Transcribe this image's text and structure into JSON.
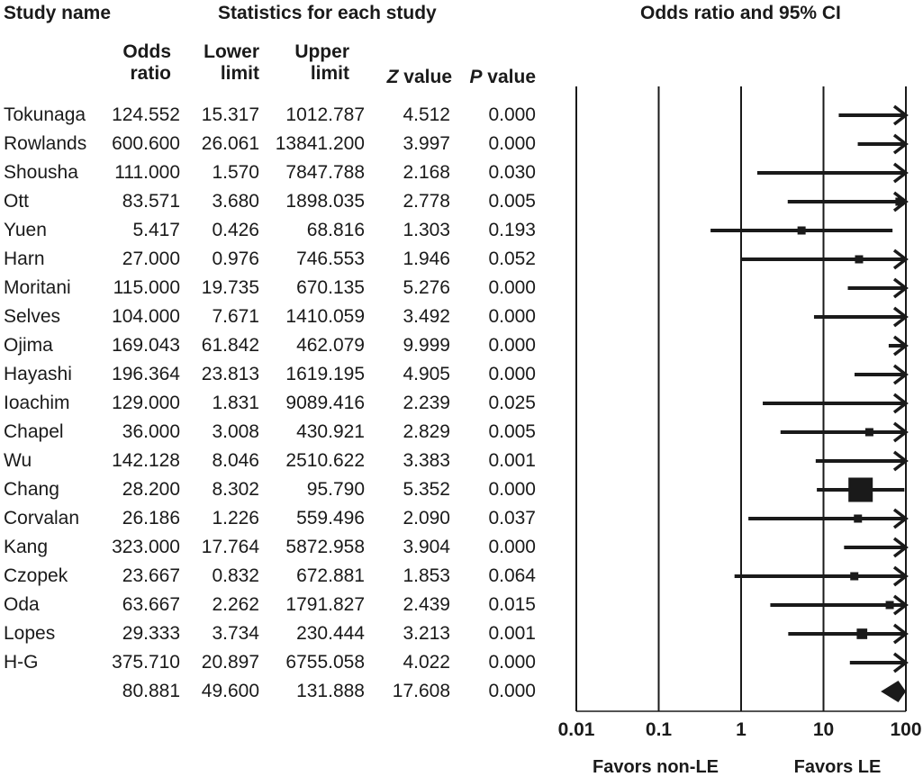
{
  "headers": {
    "study_name": "Study name",
    "stats": "Statistics for each study",
    "plot": "Odds ratio and 95% CI"
  },
  "columns": {
    "or_1": "Odds",
    "or_2": "ratio",
    "lower_1": "Lower",
    "lower_2": "limit",
    "upper_1": "Upper",
    "upper_2": "limit",
    "z_sym": "Z",
    "z_word": "value",
    "p_sym": "P",
    "p_word": "value"
  },
  "rows": [
    {
      "study": "Tokunaga",
      "or": "124.552",
      "lower": "15.317",
      "upper": "1012.787",
      "z": "4.512",
      "p": "0.000"
    },
    {
      "study": "Rowlands",
      "or": "600.600",
      "lower": "26.061",
      "upper": "13841.200",
      "z": "3.997",
      "p": "0.000"
    },
    {
      "study": "Shousha",
      "or": "111.000",
      "lower": "1.570",
      "upper": "7847.788",
      "z": "2.168",
      "p": "0.030"
    },
    {
      "study": "Ott",
      "or": "83.571",
      "lower": "3.680",
      "upper": "1898.035",
      "z": "2.778",
      "p": "0.005"
    },
    {
      "study": "Yuen",
      "or": "5.417",
      "lower": "0.426",
      "upper": "68.816",
      "z": "1.303",
      "p": "0.193"
    },
    {
      "study": "Harn",
      "or": "27.000",
      "lower": "0.976",
      "upper": "746.553",
      "z": "1.946",
      "p": "0.052"
    },
    {
      "study": "Moritani",
      "or": "115.000",
      "lower": "19.735",
      "upper": "670.135",
      "z": "5.276",
      "p": "0.000"
    },
    {
      "study": "Selves",
      "or": "104.000",
      "lower": "7.671",
      "upper": "1410.059",
      "z": "3.492",
      "p": "0.000"
    },
    {
      "study": "Ojima",
      "or": "169.043",
      "lower": "61.842",
      "upper": "462.079",
      "z": "9.999",
      "p": "0.000"
    },
    {
      "study": "Hayashi",
      "or": "196.364",
      "lower": "23.813",
      "upper": "1619.195",
      "z": "4.905",
      "p": "0.000"
    },
    {
      "study": "Ioachim",
      "or": "129.000",
      "lower": "1.831",
      "upper": "9089.416",
      "z": "2.239",
      "p": "0.025"
    },
    {
      "study": "Chapel",
      "or": "36.000",
      "lower": "3.008",
      "upper": "430.921",
      "z": "2.829",
      "p": "0.005"
    },
    {
      "study": "Wu",
      "or": "142.128",
      "lower": "8.046",
      "upper": "2510.622",
      "z": "3.383",
      "p": "0.001"
    },
    {
      "study": "Chang",
      "or": "28.200",
      "lower": "8.302",
      "upper": "95.790",
      "z": "5.352",
      "p": "0.000"
    },
    {
      "study": "Corvalan",
      "or": "26.186",
      "lower": "1.226",
      "upper": "559.496",
      "z": "2.090",
      "p": "0.037"
    },
    {
      "study": "Kang",
      "or": "323.000",
      "lower": "17.764",
      "upper": "5872.958",
      "z": "3.904",
      "p": "0.000"
    },
    {
      "study": "Czopek",
      "or": "23.667",
      "lower": "0.832",
      "upper": "672.881",
      "z": "1.853",
      "p": "0.064"
    },
    {
      "study": "Oda",
      "or": "63.667",
      "lower": "2.262",
      "upper": "1791.827",
      "z": "2.439",
      "p": "0.015"
    },
    {
      "study": "Lopes",
      "or": "29.333",
      "lower": "3.734",
      "upper": "230.444",
      "z": "3.213",
      "p": "0.001"
    },
    {
      "study": "H-G",
      "or": "375.710",
      "lower": "20.897",
      "upper": "6755.058",
      "z": "4.022",
      "p": "0.000"
    },
    {
      "study": "",
      "or": "80.881",
      "lower": "49.600",
      "upper": "131.888",
      "z": "17.608",
      "p": "0.000"
    }
  ],
  "colors": {
    "ink": "#1a1a1a",
    "background": "#ffffff"
  },
  "chart_data": {
    "type": "forest",
    "title": "Odds ratio and 95% CI",
    "x_scale": "log",
    "xlim": [
      0.01,
      100
    ],
    "x_ticks": [
      0.01,
      0.1,
      1,
      10,
      100
    ],
    "x_tick_labels": [
      "0.01",
      "0.1",
      "1",
      "10",
      "100"
    ],
    "favors_left": "Favors non-LE",
    "favors_right": "Favors LE",
    "gridlines_at": [
      0.01,
      0.1,
      1,
      10,
      100
    ],
    "marker_weights": [
      1,
      1,
      1,
      1,
      1,
      1,
      1,
      1,
      1,
      1,
      1,
      1,
      1,
      3,
      1,
      1,
      1,
      1,
      1.3,
      1
    ],
    "studies": [
      {
        "name": "Tokunaga",
        "or": 124.552,
        "lower": 15.317,
        "upper": 1012.787
      },
      {
        "name": "Rowlands",
        "or": 600.6,
        "lower": 26.061,
        "upper": 13841.2
      },
      {
        "name": "Shousha",
        "or": 111.0,
        "lower": 1.57,
        "upper": 7847.788
      },
      {
        "name": "Ott",
        "or": 83.571,
        "lower": 3.68,
        "upper": 1898.035
      },
      {
        "name": "Yuen",
        "or": 5.417,
        "lower": 0.426,
        "upper": 68.816
      },
      {
        "name": "Harn",
        "or": 27.0,
        "lower": 0.976,
        "upper": 746.553
      },
      {
        "name": "Moritani",
        "or": 115.0,
        "lower": 19.735,
        "upper": 670.135
      },
      {
        "name": "Selves",
        "or": 104.0,
        "lower": 7.671,
        "upper": 1410.059
      },
      {
        "name": "Ojima",
        "or": 169.043,
        "lower": 61.842,
        "upper": 462.079
      },
      {
        "name": "Hayashi",
        "or": 196.364,
        "lower": 23.813,
        "upper": 1619.195
      },
      {
        "name": "Ioachim",
        "or": 129.0,
        "lower": 1.831,
        "upper": 9089.416
      },
      {
        "name": "Chapel",
        "or": 36.0,
        "lower": 3.008,
        "upper": 430.921
      },
      {
        "name": "Wu",
        "or": 142.128,
        "lower": 8.046,
        "upper": 2510.622
      },
      {
        "name": "Chang",
        "or": 28.2,
        "lower": 8.302,
        "upper": 95.79
      },
      {
        "name": "Corvalan",
        "or": 26.186,
        "lower": 1.226,
        "upper": 559.496
      },
      {
        "name": "Kang",
        "or": 323.0,
        "lower": 17.764,
        "upper": 5872.958
      },
      {
        "name": "Czopek",
        "or": 23.667,
        "lower": 0.832,
        "upper": 672.881
      },
      {
        "name": "Oda",
        "or": 63.667,
        "lower": 2.262,
        "upper": 1791.827
      },
      {
        "name": "Lopes",
        "or": 29.333,
        "lower": 3.734,
        "upper": 230.444
      },
      {
        "name": "H-G",
        "or": 375.71,
        "lower": 20.897,
        "upper": 6755.058
      }
    ],
    "pooled": {
      "or": 80.881,
      "lower": 49.6,
      "upper": 131.888
    }
  }
}
